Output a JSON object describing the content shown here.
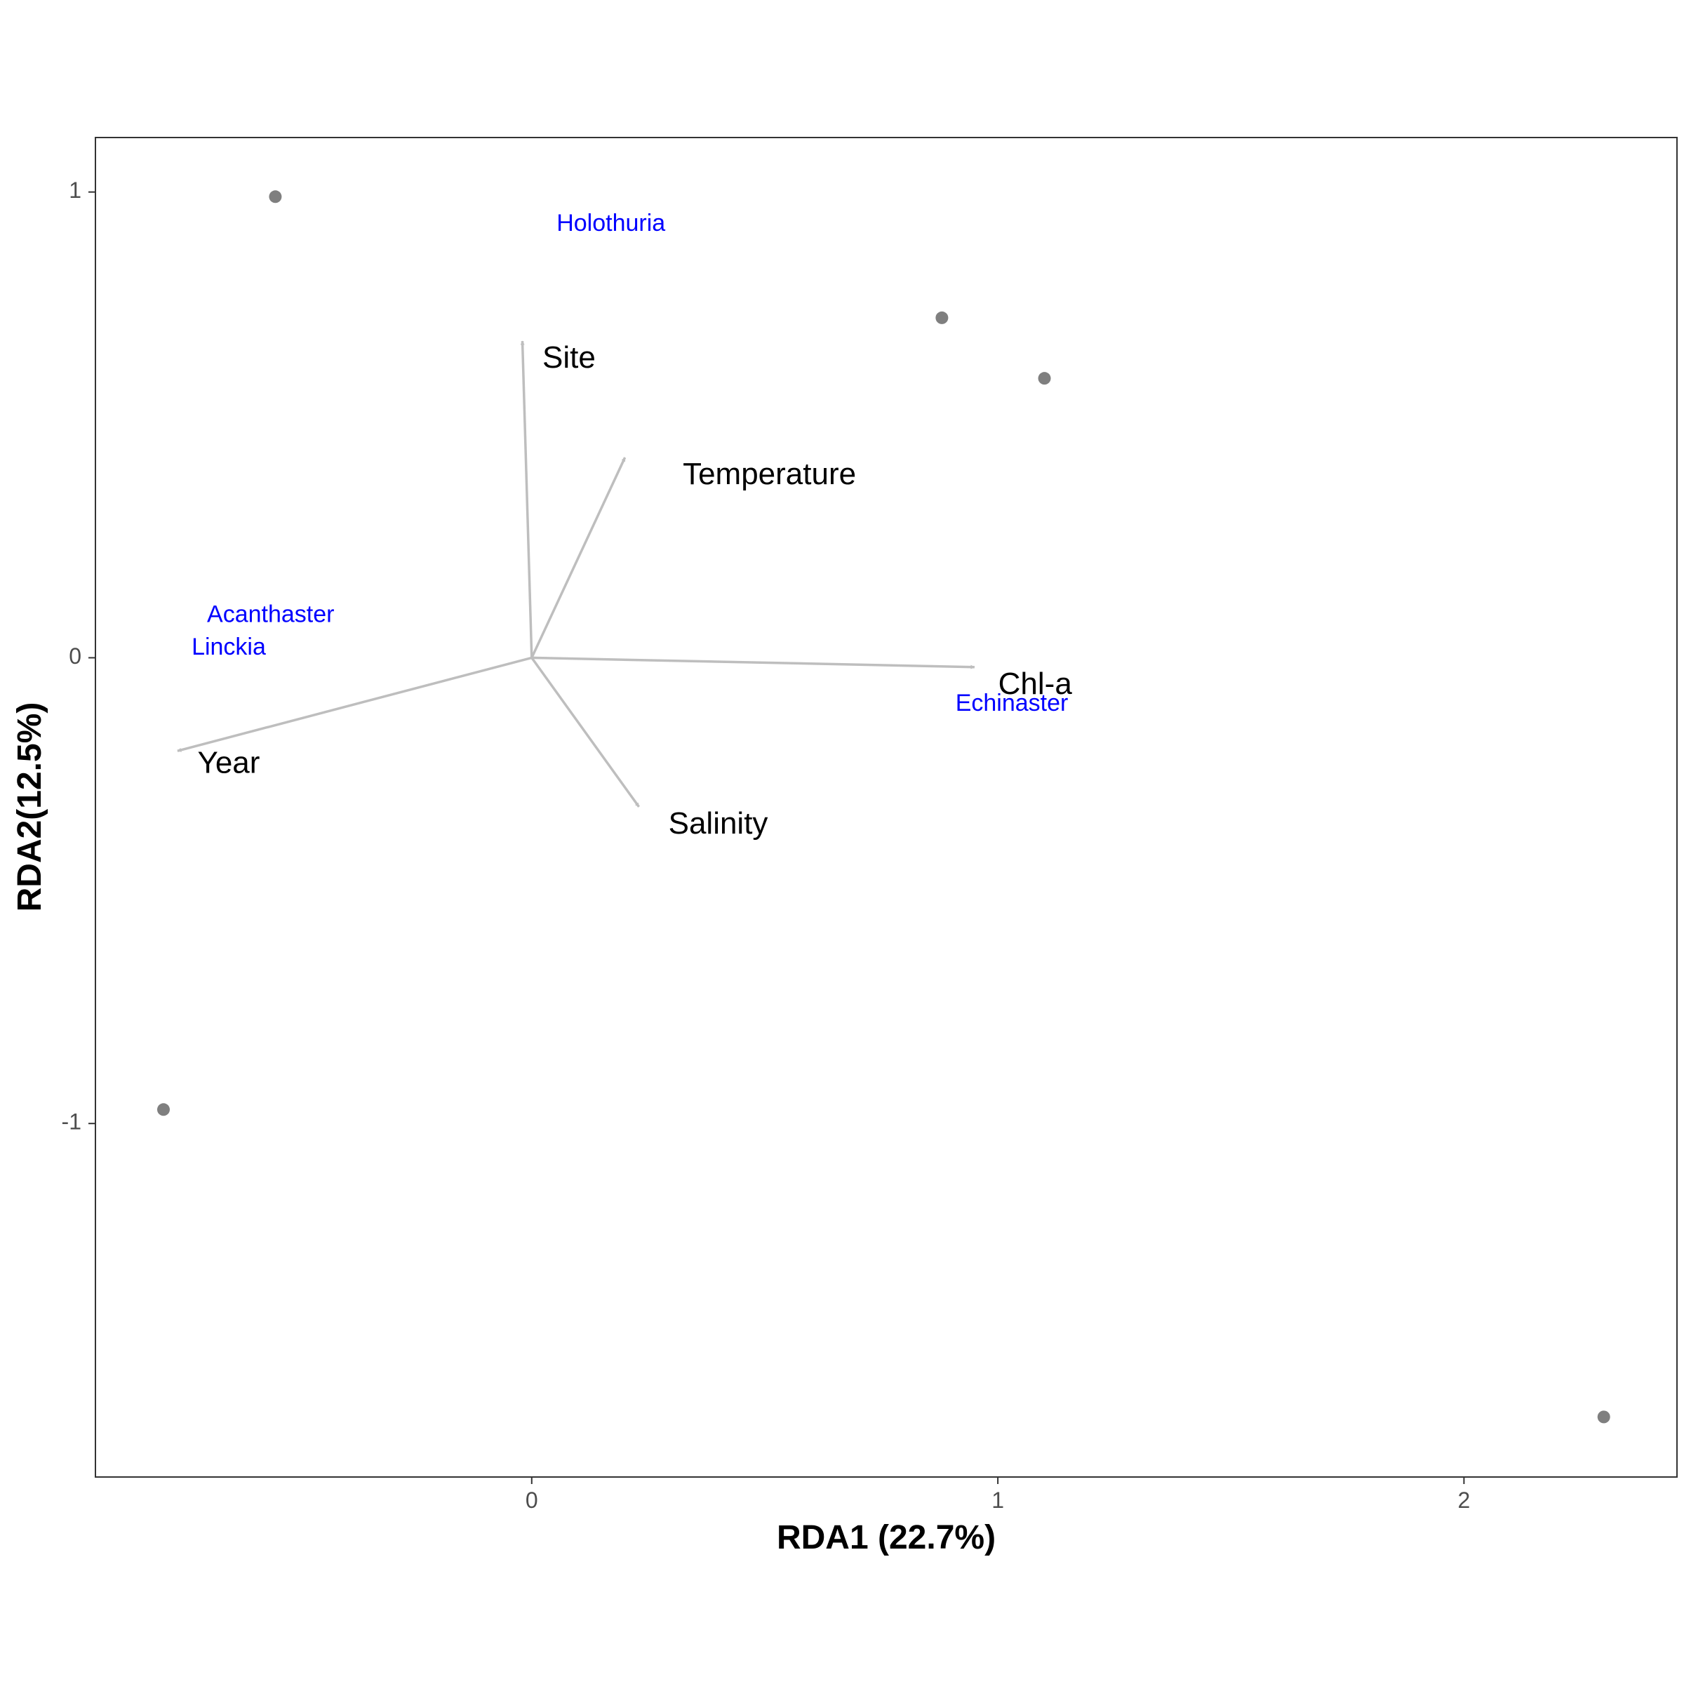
{
  "chart_data": {
    "type": "scatter",
    "subtype": "rda-biplot",
    "xlabel": "RDA1 (22.7%)",
    "ylabel": "RDA2(12.5%)",
    "xlim": [
      -0.936,
      2.457
    ],
    "ylim": [
      -1.759,
      1.117
    ],
    "x_ticks": [
      0,
      1,
      2
    ],
    "y_ticks": [
      -1,
      0,
      1
    ],
    "grid": false,
    "colors": {
      "site_points": "#7f7f7f",
      "env_arrows": "#bebebe",
      "species_labels": "#0000ff",
      "panel_border": "#333333"
    },
    "site_points": [
      {
        "x": -0.55,
        "y": 0.99
      },
      {
        "x": 0.88,
        "y": 0.73
      },
      {
        "x": 1.1,
        "y": 0.6
      },
      {
        "x": -0.79,
        "y": -0.97
      },
      {
        "x": 2.3,
        "y": -1.63
      }
    ],
    "env_arrows": [
      {
        "name": "Site",
        "x": -0.02,
        "y": 0.68
      },
      {
        "name": "Temperature",
        "x": 0.2,
        "y": 0.43
      },
      {
        "name": "Chl-a",
        "x": 0.95,
        "y": -0.02
      },
      {
        "name": "Year",
        "x": -0.76,
        "y": -0.2
      },
      {
        "name": "Salinity",
        "x": 0.23,
        "y": -0.32
      }
    ],
    "env_label_positions": [
      {
        "name": "Site",
        "x": 0.08,
        "y": 0.64
      },
      {
        "name": "Temperature",
        "x": 0.51,
        "y": 0.39
      },
      {
        "name": "Chl-a",
        "x": 1.08,
        "y": -0.06
      },
      {
        "name": "Year",
        "x": -0.65,
        "y": -0.23
      },
      {
        "name": "Salinity",
        "x": 0.4,
        "y": -0.36
      }
    ],
    "species": [
      {
        "name": "Holothuria",
        "x": 0.17,
        "y": 0.93
      },
      {
        "name": "Acanthaster",
        "x": -0.56,
        "y": 0.09
      },
      {
        "name": "Linckia",
        "x": -0.65,
        "y": 0.02
      },
      {
        "name": "Echinaster",
        "x": 1.03,
        "y": -0.1
      }
    ]
  }
}
